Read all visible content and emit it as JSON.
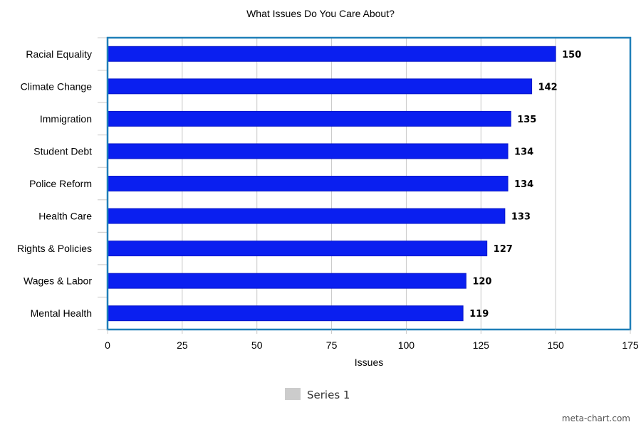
{
  "chart_data": {
    "type": "bar",
    "orientation": "horizontal",
    "title": "What Issues Do You Care About?",
    "xlabel": "Issues",
    "ylabel": "",
    "categories": [
      "Racial Equality",
      "Climate Change",
      "Immigration",
      "Student Debt",
      "Police Reform",
      "Health Care",
      "Rights & Policies",
      "Wages & Labor",
      "Mental Health"
    ],
    "series": [
      {
        "name": "Series 1",
        "values": [
          150,
          142,
          135,
          134,
          134,
          133,
          127,
          120,
          119
        ],
        "data_labels": [
          "150",
          "142",
          "135",
          "134",
          "134",
          "133",
          "127",
          "120",
          "119"
        ]
      }
    ],
    "xlim": [
      0,
      175
    ],
    "ticks": [
      0,
      25,
      50,
      75,
      100,
      125,
      150,
      175
    ],
    "tick_labels": [
      "0",
      "25",
      "50",
      "75",
      "100",
      "125",
      "150",
      "175"
    ],
    "grid": true,
    "legend": "bottom-center"
  },
  "colors": {
    "bar": "#0a1ff0",
    "bar_stroke": "#0a18c8",
    "plot_border": "#1f7fb8",
    "grid": "#c8c8c8",
    "legend_swatch": "#cccccc"
  },
  "watermark": "meta-chart.com"
}
